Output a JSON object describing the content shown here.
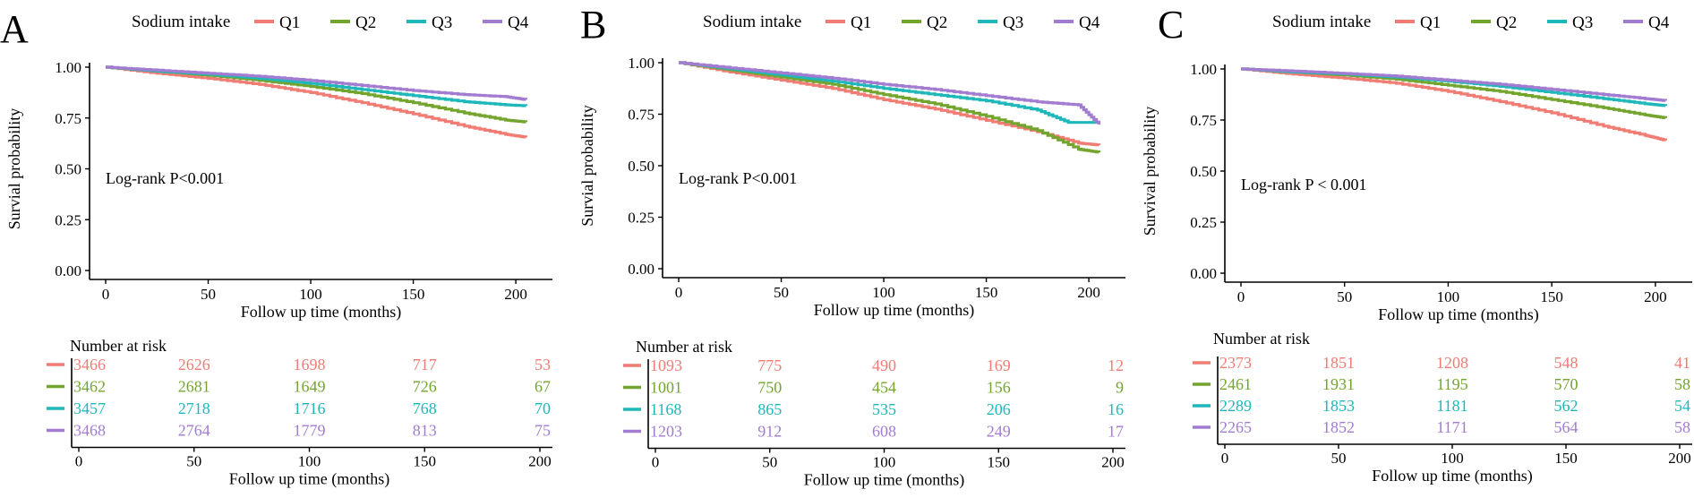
{
  "colors": {
    "Q1": "#F07C74",
    "Q2": "#73A52E",
    "Q3": "#1EB7BA",
    "Q4": "#A27CD0",
    "axis": "#000000"
  },
  "chart_data": [
    {
      "panel_label": "A",
      "type": "line",
      "title": "",
      "legend_title": "Sodium intake",
      "xlabel": "Follow up time (months)",
      "ylabel": "Survial probability",
      "xlim": [
        0,
        210
      ],
      "ylim": [
        0,
        1.0
      ],
      "x_ticks": [
        "0",
        "50",
        "100",
        "150",
        "200"
      ],
      "y_ticks": [
        "0.00",
        "0.25",
        "0.50",
        "0.75",
        "1.00"
      ],
      "annotation": "Log-rank  P<0.001",
      "series": [
        {
          "name": "Q1",
          "points": [
            [
              0,
              1.0
            ],
            [
              25,
              0.97
            ],
            [
              50,
              0.945
            ],
            [
              75,
              0.915
            ],
            [
              100,
              0.875
            ],
            [
              125,
              0.825
            ],
            [
              150,
              0.77
            ],
            [
              175,
              0.71
            ],
            [
              195,
              0.67
            ],
            [
              205,
              0.655
            ]
          ]
        },
        {
          "name": "Q2",
          "points": [
            [
              0,
              1.0
            ],
            [
              25,
              0.98
            ],
            [
              50,
              0.96
            ],
            [
              75,
              0.935
            ],
            [
              100,
              0.905
            ],
            [
              125,
              0.87
            ],
            [
              150,
              0.825
            ],
            [
              175,
              0.775
            ],
            [
              195,
              0.74
            ],
            [
              205,
              0.73
            ]
          ]
        },
        {
          "name": "Q3",
          "points": [
            [
              0,
              1.0
            ],
            [
              25,
              0.98
            ],
            [
              50,
              0.965
            ],
            [
              75,
              0.945
            ],
            [
              100,
              0.92
            ],
            [
              125,
              0.89
            ],
            [
              150,
              0.86
            ],
            [
              175,
              0.83
            ],
            [
              195,
              0.815
            ],
            [
              205,
              0.81
            ]
          ]
        },
        {
          "name": "Q4",
          "points": [
            [
              0,
              1.0
            ],
            [
              25,
              0.985
            ],
            [
              50,
              0.97
            ],
            [
              75,
              0.955
            ],
            [
              100,
              0.935
            ],
            [
              125,
              0.91
            ],
            [
              150,
              0.885
            ],
            [
              175,
              0.865
            ],
            [
              195,
              0.855
            ],
            [
              205,
              0.84
            ]
          ]
        }
      ],
      "risk_table": {
        "title": "Number at risk",
        "xlabel": "Follow up time (months)",
        "x_ticks": [
          "0",
          "50",
          "100",
          "150",
          "200"
        ],
        "rows": [
          {
            "name": "Q1",
            "values": [
              "3466",
              "2626",
              "1698",
              "717",
              "53"
            ]
          },
          {
            "name": "Q2",
            "values": [
              "3462",
              "2681",
              "1649",
              "726",
              "67"
            ]
          },
          {
            "name": "Q3",
            "values": [
              "3457",
              "2718",
              "1716",
              "768",
              "70"
            ]
          },
          {
            "name": "Q4",
            "values": [
              "3468",
              "2764",
              "1779",
              "813",
              "75"
            ]
          }
        ]
      }
    },
    {
      "panel_label": "B",
      "type": "line",
      "title": "",
      "legend_title": "Sodium intake",
      "xlabel": "Follow up time (months)",
      "ylabel": "Survial probability",
      "xlim": [
        0,
        210
      ],
      "ylim": [
        0,
        1.0
      ],
      "x_ticks": [
        "0",
        "50",
        "100",
        "150",
        "200"
      ],
      "y_ticks": [
        "0.00",
        "0.25",
        "0.50",
        "0.75",
        "1.00"
      ],
      "annotation": "Log-rank  P<0.001",
      "series": [
        {
          "name": "Q1",
          "points": [
            [
              0,
              1.0
            ],
            [
              25,
              0.955
            ],
            [
              50,
              0.915
            ],
            [
              75,
              0.875
            ],
            [
              100,
              0.82
            ],
            [
              125,
              0.775
            ],
            [
              150,
              0.72
            ],
            [
              175,
              0.665
            ],
            [
              195,
              0.61
            ],
            [
              205,
              0.6
            ]
          ]
        },
        {
          "name": "Q2",
          "points": [
            [
              0,
              1.0
            ],
            [
              25,
              0.965
            ],
            [
              50,
              0.93
            ],
            [
              75,
              0.895
            ],
            [
              100,
              0.845
            ],
            [
              125,
              0.8
            ],
            [
              150,
              0.74
            ],
            [
              175,
              0.67
            ],
            [
              195,
              0.58
            ],
            [
              205,
              0.565
            ]
          ]
        },
        {
          "name": "Q3",
          "points": [
            [
              0,
              1.0
            ],
            [
              25,
              0.97
            ],
            [
              50,
              0.94
            ],
            [
              75,
              0.91
            ],
            [
              100,
              0.875
            ],
            [
              125,
              0.845
            ],
            [
              150,
              0.815
            ],
            [
              175,
              0.77
            ],
            [
              190,
              0.71
            ],
            [
              205,
              0.71
            ]
          ]
        },
        {
          "name": "Q4",
          "points": [
            [
              0,
              1.0
            ],
            [
              25,
              0.975
            ],
            [
              50,
              0.95
            ],
            [
              75,
              0.925
            ],
            [
              100,
              0.895
            ],
            [
              125,
              0.87
            ],
            [
              150,
              0.84
            ],
            [
              175,
              0.81
            ],
            [
              195,
              0.795
            ],
            [
              205,
              0.7
            ]
          ]
        }
      ],
      "risk_table": {
        "title": "Number at risk",
        "xlabel": "Follow up time (months)",
        "x_ticks": [
          "0",
          "50",
          "100",
          "150",
          "200"
        ],
        "rows": [
          {
            "name": "Q1",
            "values": [
              "1093",
              "775",
              "490",
              "169",
              "12"
            ]
          },
          {
            "name": "Q2",
            "values": [
              "1001",
              "750",
              "454",
              "156",
              "9"
            ]
          },
          {
            "name": "Q3",
            "values": [
              "1168",
              "865",
              "535",
              "206",
              "16"
            ]
          },
          {
            "name": "Q4",
            "values": [
              "1203",
              "912",
              "608",
              "249",
              "17"
            ]
          }
        ]
      }
    },
    {
      "panel_label": "C",
      "type": "line",
      "title": "",
      "legend_title": "Sodium intake",
      "xlabel": "Follow up time (months)",
      "ylabel": "Survival probability",
      "xlim": [
        0,
        210
      ],
      "ylim": [
        0,
        1.0
      ],
      "x_ticks": [
        "0",
        "50",
        "100",
        "150",
        "200"
      ],
      "y_ticks": [
        "0.00",
        "0.25",
        "0.50",
        "0.75",
        "1.00"
      ],
      "annotation": "Log-rank  P < 0.001",
      "series": [
        {
          "name": "Q1",
          "points": [
            [
              0,
              1.0
            ],
            [
              25,
              0.975
            ],
            [
              50,
              0.955
            ],
            [
              75,
              0.93
            ],
            [
              100,
              0.89
            ],
            [
              125,
              0.84
            ],
            [
              150,
              0.785
            ],
            [
              175,
              0.72
            ],
            [
              195,
              0.675
            ],
            [
              205,
              0.65
            ]
          ]
        },
        {
          "name": "Q2",
          "points": [
            [
              0,
              1.0
            ],
            [
              25,
              0.985
            ],
            [
              50,
              0.97
            ],
            [
              75,
              0.95
            ],
            [
              100,
              0.92
            ],
            [
              125,
              0.89
            ],
            [
              150,
              0.85
            ],
            [
              175,
              0.81
            ],
            [
              195,
              0.775
            ],
            [
              205,
              0.76
            ]
          ]
        },
        {
          "name": "Q3",
          "points": [
            [
              0,
              1.0
            ],
            [
              25,
              0.985
            ],
            [
              50,
              0.975
            ],
            [
              75,
              0.96
            ],
            [
              100,
              0.94
            ],
            [
              125,
              0.915
            ],
            [
              150,
              0.885
            ],
            [
              175,
              0.855
            ],
            [
              195,
              0.83
            ],
            [
              205,
              0.82
            ]
          ]
        },
        {
          "name": "Q4",
          "points": [
            [
              0,
              1.0
            ],
            [
              25,
              0.99
            ],
            [
              50,
              0.978
            ],
            [
              75,
              0.965
            ],
            [
              100,
              0.945
            ],
            [
              125,
              0.925
            ],
            [
              150,
              0.9
            ],
            [
              175,
              0.875
            ],
            [
              195,
              0.855
            ],
            [
              205,
              0.845
            ]
          ]
        }
      ],
      "risk_table": {
        "title": "Number at risk",
        "xlabel": "Follow up time (months)",
        "x_ticks": [
          "0",
          "50",
          "100",
          "150",
          "200"
        ],
        "rows": [
          {
            "name": "Q1",
            "values": [
              "2373",
              "1851",
              "1208",
              "548",
              "41"
            ]
          },
          {
            "name": "Q2",
            "values": [
              "2461",
              "1931",
              "1195",
              "570",
              "58"
            ]
          },
          {
            "name": "Q3",
            "values": [
              "2289",
              "1853",
              "1181",
              "562",
              "54"
            ]
          },
          {
            "name": "Q4",
            "values": [
              "2265",
              "1852",
              "1171",
              "564",
              "58"
            ]
          }
        ]
      }
    }
  ]
}
